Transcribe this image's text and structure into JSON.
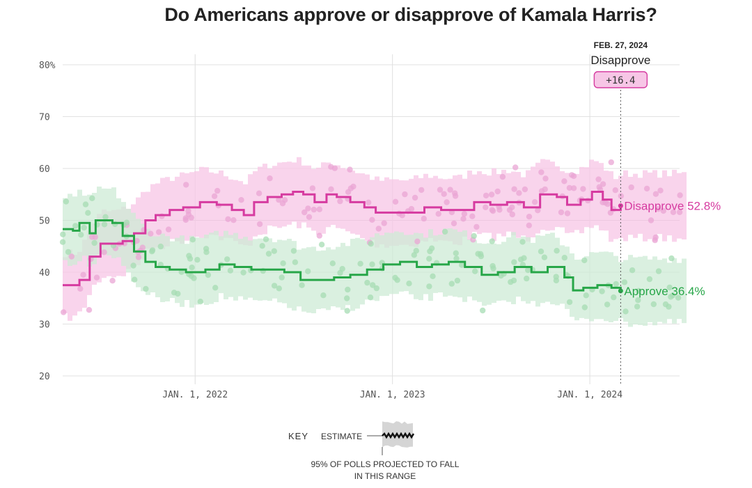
{
  "title": "Do Americans approve or disapprove of Kamala Harris?",
  "chart_data": {
    "type": "line",
    "title": "Do Americans approve or disapprove of Kamala Harris?",
    "ylim": [
      20,
      80
    ],
    "y_ticks": [
      "20",
      "30",
      "40",
      "50",
      "60",
      "70",
      "80%"
    ],
    "y_tick_values": [
      20,
      30,
      40,
      50,
      60,
      70,
      80
    ],
    "x_range": [
      "2021-05-01",
      "2024-06-15"
    ],
    "x_ticks": [
      {
        "label": "JAN. 1, 2022",
        "date": "2022-01-01"
      },
      {
        "label": "JAN. 1, 2023",
        "date": "2023-01-01"
      },
      {
        "label": "JAN. 1, 2024",
        "date": "2024-01-01"
      }
    ],
    "series": [
      {
        "name": "Disapprove",
        "color": "#d63ba0",
        "band_color": "#f7c6e6",
        "dot_color": "#eaa6d4",
        "final_value": 52.8,
        "end_label": "Disapprove 52.8%",
        "band_halfwidth": 6.2,
        "points": [
          [
            "2021-05-01",
            37.5
          ],
          [
            "2021-05-20",
            37.5
          ],
          [
            "2021-06-01",
            38.5
          ],
          [
            "2021-06-20",
            43
          ],
          [
            "2021-07-10",
            45.5
          ],
          [
            "2021-08-01",
            45.5
          ],
          [
            "2021-08-20",
            46
          ],
          [
            "2021-09-10",
            47.5
          ],
          [
            "2021-10-01",
            50
          ],
          [
            "2021-10-20",
            51
          ],
          [
            "2021-11-15",
            52
          ],
          [
            "2021-12-10",
            52.5
          ],
          [
            "2022-01-10",
            53.5
          ],
          [
            "2022-02-10",
            53
          ],
          [
            "2022-03-10",
            52
          ],
          [
            "2022-04-01",
            51
          ],
          [
            "2022-04-20",
            53.5
          ],
          [
            "2022-05-15",
            54.5
          ],
          [
            "2022-06-10",
            55
          ],
          [
            "2022-07-01",
            55.5
          ],
          [
            "2022-07-20",
            55
          ],
          [
            "2022-08-10",
            53.5
          ],
          [
            "2022-09-01",
            55
          ],
          [
            "2022-09-20",
            54.5
          ],
          [
            "2022-10-15",
            53.5
          ],
          [
            "2022-11-10",
            52.5
          ],
          [
            "2022-12-01",
            51.5
          ],
          [
            "2023-01-01",
            51.5
          ],
          [
            "2023-02-01",
            51.5
          ],
          [
            "2023-03-01",
            52.5
          ],
          [
            "2023-04-01",
            52
          ],
          [
            "2023-05-01",
            52
          ],
          [
            "2023-06-01",
            53.5
          ],
          [
            "2023-07-01",
            53
          ],
          [
            "2023-08-01",
            53.5
          ],
          [
            "2023-09-01",
            52.5
          ],
          [
            "2023-10-01",
            55
          ],
          [
            "2023-11-01",
            54.5
          ],
          [
            "2023-11-20",
            53
          ],
          [
            "2023-12-15",
            54
          ],
          [
            "2024-01-05",
            55.5
          ],
          [
            "2024-01-25",
            54
          ],
          [
            "2024-02-10",
            52
          ],
          [
            "2024-02-27",
            52.8
          ]
        ]
      },
      {
        "name": "Approve",
        "color": "#27a648",
        "band_color": "#cdebd5",
        "dot_color": "#a6dcb3",
        "final_value": 36.4,
        "end_label": "Approve 36.4%",
        "band_halfwidth": 6.2,
        "points": [
          [
            "2021-05-01",
            48.3
          ],
          [
            "2021-05-20",
            48
          ],
          [
            "2021-06-01",
            49.5
          ],
          [
            "2021-06-20",
            47.5
          ],
          [
            "2021-07-01",
            50
          ],
          [
            "2021-08-01",
            49.5
          ],
          [
            "2021-08-20",
            47
          ],
          [
            "2021-09-10",
            44
          ],
          [
            "2021-10-01",
            42
          ],
          [
            "2021-10-20",
            41
          ],
          [
            "2021-11-15",
            40.5
          ],
          [
            "2021-12-15",
            40
          ],
          [
            "2022-01-20",
            40.5
          ],
          [
            "2022-02-15",
            41.5
          ],
          [
            "2022-03-15",
            41
          ],
          [
            "2022-04-15",
            40.5
          ],
          [
            "2022-05-15",
            40.5
          ],
          [
            "2022-06-15",
            40
          ],
          [
            "2022-07-15",
            38.5
          ],
          [
            "2022-08-15",
            38.5
          ],
          [
            "2022-09-15",
            39
          ],
          [
            "2022-10-15",
            39.5
          ],
          [
            "2022-11-15",
            40.5
          ],
          [
            "2022-12-15",
            41.5
          ],
          [
            "2023-01-15",
            42
          ],
          [
            "2023-02-15",
            41
          ],
          [
            "2023-03-15",
            41.5
          ],
          [
            "2023-04-15",
            42
          ],
          [
            "2023-05-15",
            41
          ],
          [
            "2023-06-15",
            39.5
          ],
          [
            "2023-07-15",
            40
          ],
          [
            "2023-08-15",
            41
          ],
          [
            "2023-09-15",
            40
          ],
          [
            "2023-10-15",
            41
          ],
          [
            "2023-11-15",
            39
          ],
          [
            "2023-12-01",
            36.5
          ],
          [
            "2023-12-20",
            37
          ],
          [
            "2024-01-15",
            37.5
          ],
          [
            "2024-02-10",
            37
          ],
          [
            "2024-02-27",
            36.4
          ]
        ]
      }
    ],
    "annotation": {
      "date": "FEB. 27, 2024",
      "date_value": "2024-02-27",
      "label": "Disapprove",
      "value": "+16.4"
    },
    "key": {
      "title": "KEY",
      "estimate": "ESTIMATE",
      "range": "95% OF POLLS PROJECTED TO FALL IN THIS RANGE"
    }
  }
}
